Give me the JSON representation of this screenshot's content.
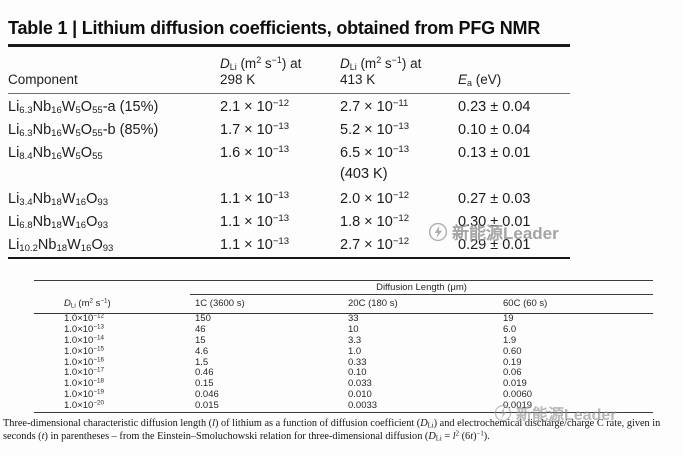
{
  "colors": {
    "rule_heavy": "#1a1a1a",
    "rule_light": "#6e6e6e",
    "table2_rule": "#3c3c3c",
    "watermark_gray": "#8f8f8f"
  },
  "watermark": {
    "text": "新能源Leader",
    "logo": "circle-swoosh-icon"
  },
  "table1": {
    "title": "Table 1 | Lithium diffusion coefficients, obtained from PFG NMR",
    "headers": {
      "component": "Component",
      "d298_line1": [
        {
          "t": "D",
          "i": true
        },
        {
          "t": "Li",
          "sub": true
        },
        {
          "t": " (m"
        },
        {
          "t": "2",
          "sup": true
        },
        {
          "t": " s"
        },
        {
          "t": "−1",
          "sup": true
        },
        {
          "t": ") at"
        }
      ],
      "d298_line2": "298 K",
      "d413_line1": [
        {
          "t": "D",
          "i": true
        },
        {
          "t": "Li",
          "sub": true
        },
        {
          "t": " (m"
        },
        {
          "t": "2",
          "sup": true
        },
        {
          "t": " s"
        },
        {
          "t": "−1",
          "sup": true
        },
        {
          "t": ") at"
        }
      ],
      "d413_line2": "413 K",
      "ea": [
        {
          "t": "E",
          "i": true
        },
        {
          "t": "a",
          "sub": true
        },
        {
          "t": " (eV)"
        }
      ]
    },
    "rows": [
      {
        "component": [
          {
            "t": "Li"
          },
          {
            "t": "6.3",
            "sub": true
          },
          {
            "t": "Nb"
          },
          {
            "t": "16",
            "sub": true
          },
          {
            "t": "W"
          },
          {
            "t": "5",
            "sub": true
          },
          {
            "t": "O"
          },
          {
            "t": "55",
            "sub": true
          },
          {
            "t": "-a (15%)"
          }
        ],
        "d298": [
          {
            "t": "2.1 × 10"
          },
          {
            "t": "−12",
            "sup": true
          }
        ],
        "d413": [
          {
            "t": "2.7 × 10"
          },
          {
            "t": "−11",
            "sup": true
          }
        ],
        "ea": "0.23 ± 0.04"
      },
      {
        "component": [
          {
            "t": "Li"
          },
          {
            "t": "6.3",
            "sub": true
          },
          {
            "t": "Nb"
          },
          {
            "t": "16",
            "sub": true
          },
          {
            "t": "W"
          },
          {
            "t": "5",
            "sub": true
          },
          {
            "t": "O"
          },
          {
            "t": "55",
            "sub": true
          },
          {
            "t": "-b (85%)"
          }
        ],
        "d298": [
          {
            "t": "1.7 × 10"
          },
          {
            "t": "−13",
            "sup": true
          }
        ],
        "d413": [
          {
            "t": "5.2 × 10"
          },
          {
            "t": "−13",
            "sup": true
          }
        ],
        "ea": "0.10 ± 0.04"
      },
      {
        "component": [
          {
            "t": "Li"
          },
          {
            "t": "8.4",
            "sub": true
          },
          {
            "t": "Nb"
          },
          {
            "t": "16",
            "sub": true
          },
          {
            "t": "W"
          },
          {
            "t": "5",
            "sub": true
          },
          {
            "t": "O"
          },
          {
            "t": "55",
            "sub": true
          }
        ],
        "d298": [
          {
            "t": "1.6 × 10"
          },
          {
            "t": "−13",
            "sup": true
          }
        ],
        "d413": [
          {
            "t": "6.5 × 10"
          },
          {
            "t": "−13",
            "sup": true
          }
        ],
        "d413_note": "(403 K)",
        "ea": "0.13 ± 0.01"
      },
      {
        "component": [
          {
            "t": "Li"
          },
          {
            "t": "3.4",
            "sub": true
          },
          {
            "t": "Nb"
          },
          {
            "t": "18",
            "sub": true
          },
          {
            "t": "W"
          },
          {
            "t": "16",
            "sub": true
          },
          {
            "t": "O"
          },
          {
            "t": "93",
            "sub": true
          }
        ],
        "d298": [
          {
            "t": "1.1 × 10"
          },
          {
            "t": "−13",
            "sup": true
          }
        ],
        "d413": [
          {
            "t": "2.0 × 10"
          },
          {
            "t": "−12",
            "sup": true
          }
        ],
        "ea": "0.27 ± 0.03"
      },
      {
        "component": [
          {
            "t": "Li"
          },
          {
            "t": "6.8",
            "sub": true
          },
          {
            "t": "Nb"
          },
          {
            "t": "18",
            "sub": true
          },
          {
            "t": "W"
          },
          {
            "t": "16",
            "sub": true
          },
          {
            "t": "O"
          },
          {
            "t": "93",
            "sub": true
          }
        ],
        "d298": [
          {
            "t": "1.1 × 10"
          },
          {
            "t": "−13",
            "sup": true
          }
        ],
        "d413": [
          {
            "t": "1.8 × 10"
          },
          {
            "t": "−12",
            "sup": true
          }
        ],
        "ea": "0.30 ± 0.01"
      },
      {
        "component": [
          {
            "t": "Li"
          },
          {
            "t": "10.2",
            "sub": true
          },
          {
            "t": "Nb"
          },
          {
            "t": "18",
            "sub": true
          },
          {
            "t": "W"
          },
          {
            "t": "16",
            "sub": true
          },
          {
            "t": "O"
          },
          {
            "t": "93",
            "sub": true
          }
        ],
        "d298": [
          {
            "t": "1.1 × 10"
          },
          {
            "t": "−13",
            "sup": true
          }
        ],
        "d413": [
          {
            "t": "2.7 × 10"
          },
          {
            "t": "−12",
            "sup": true
          }
        ],
        "ea": "0.29 ± 0.01"
      }
    ]
  },
  "table2": {
    "group_header": "Diffusion Length (μm)",
    "headers": {
      "dli": [
        {
          "t": "D",
          "i": true
        },
        {
          "t": "Li",
          "sub": true
        },
        {
          "t": " (m"
        },
        {
          "t": "2",
          "sup": true
        },
        {
          "t": " s"
        },
        {
          "t": "−1",
          "sup": true
        },
        {
          "t": ")"
        }
      ],
      "c1": "1C (3600 s)",
      "c20": "20C (180 s)",
      "c60": "60C (60 s)"
    },
    "rows": [
      {
        "d": [
          {
            "t": "1.0×10"
          },
          {
            "t": "−12",
            "sup": true
          }
        ],
        "c1": "150",
        "c20": "33",
        "c60": "19"
      },
      {
        "d": [
          {
            "t": "1.0×10"
          },
          {
            "t": "−13",
            "sup": true
          }
        ],
        "c1": "46",
        "c20": "10",
        "c60": "6.0"
      },
      {
        "d": [
          {
            "t": "1.0×10"
          },
          {
            "t": "−14",
            "sup": true
          }
        ],
        "c1": "15",
        "c20": "3.3",
        "c60": "1.9"
      },
      {
        "d": [
          {
            "t": "1.0×10"
          },
          {
            "t": "−15",
            "sup": true
          }
        ],
        "c1": "4.6",
        "c20": "1.0",
        "c60": "0.60"
      },
      {
        "d": [
          {
            "t": "1.0×10"
          },
          {
            "t": "−16",
            "sup": true
          }
        ],
        "c1": "1.5",
        "c20": "0.33",
        "c60": "0.19"
      },
      {
        "d": [
          {
            "t": "1.0×10"
          },
          {
            "t": "−17",
            "sup": true
          }
        ],
        "c1": "0.46",
        "c20": "0.10",
        "c60": "0.06"
      },
      {
        "d": [
          {
            "t": "1.0×10"
          },
          {
            "t": "−18",
            "sup": true
          }
        ],
        "c1": "0.15",
        "c20": "0.033",
        "c60": "0.019"
      },
      {
        "d": [
          {
            "t": "1.0×10"
          },
          {
            "t": "−19",
            "sup": true
          }
        ],
        "c1": "0.046",
        "c20": "0.010",
        "c60": "0.0060"
      },
      {
        "d": [
          {
            "t": "1.0×10"
          },
          {
            "t": "−20",
            "sup": true
          }
        ],
        "c1": "0.015",
        "c20": "0.0033",
        "c60": "0.0019"
      }
    ],
    "footnote": [
      {
        "t": "Three-dimensional characteristic diffusion length ("
      },
      {
        "t": "l",
        "i": true
      },
      {
        "t": ") of lithium as a function of diffusion coefficient ("
      },
      {
        "t": "D",
        "i": true
      },
      {
        "t": "Li",
        "sub": true
      },
      {
        "t": ") and electrochemical discharge/charge C rate, given in seconds ("
      },
      {
        "t": "t",
        "i": true
      },
      {
        "t": ") in parentheses – from the Einstein–Smoluchowski relation for three-dimensional diffusion ("
      },
      {
        "t": "D",
        "i": true
      },
      {
        "t": "Li",
        "sub": true
      },
      {
        "t": " = "
      },
      {
        "t": "l",
        "i": true
      },
      {
        "t": "2",
        "sup": true
      },
      {
        "t": " (6"
      },
      {
        "t": "t",
        "i": true
      },
      {
        "t": ")"
      },
      {
        "t": "−1",
        "sup": true
      },
      {
        "t": ")."
      }
    ]
  }
}
